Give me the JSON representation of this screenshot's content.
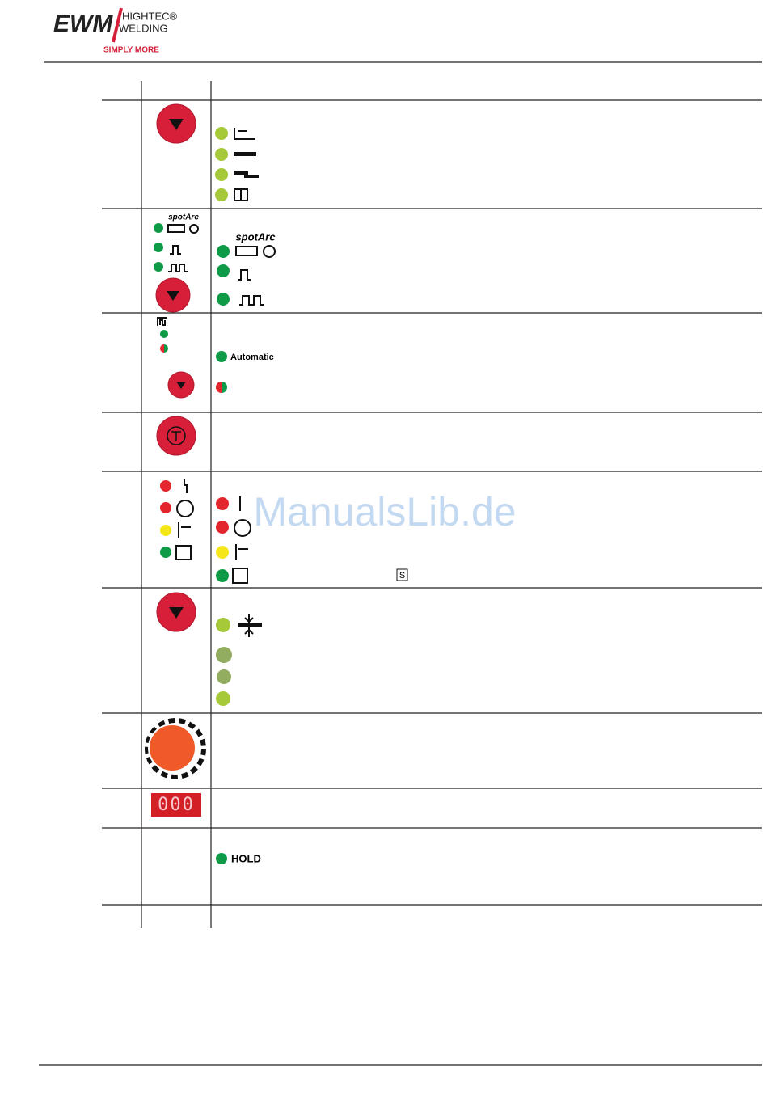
{
  "header": {
    "logo": "EWM",
    "brand_line1": "HIGHTEC®",
    "brand_line2": "WELDING",
    "slogan": "SIMPLY MORE"
  },
  "watermark": "ManualsLib.de",
  "table": {
    "rows": [
      {},
      {
        "panel_label": "spotArc",
        "description_label": "spotArc"
      },
      {
        "description_label": "Automatic"
      },
      {},
      {
        "description_label": "S"
      },
      {},
      {},
      {
        "display": "000"
      },
      {
        "description_label": "HOLD"
      }
    ]
  }
}
